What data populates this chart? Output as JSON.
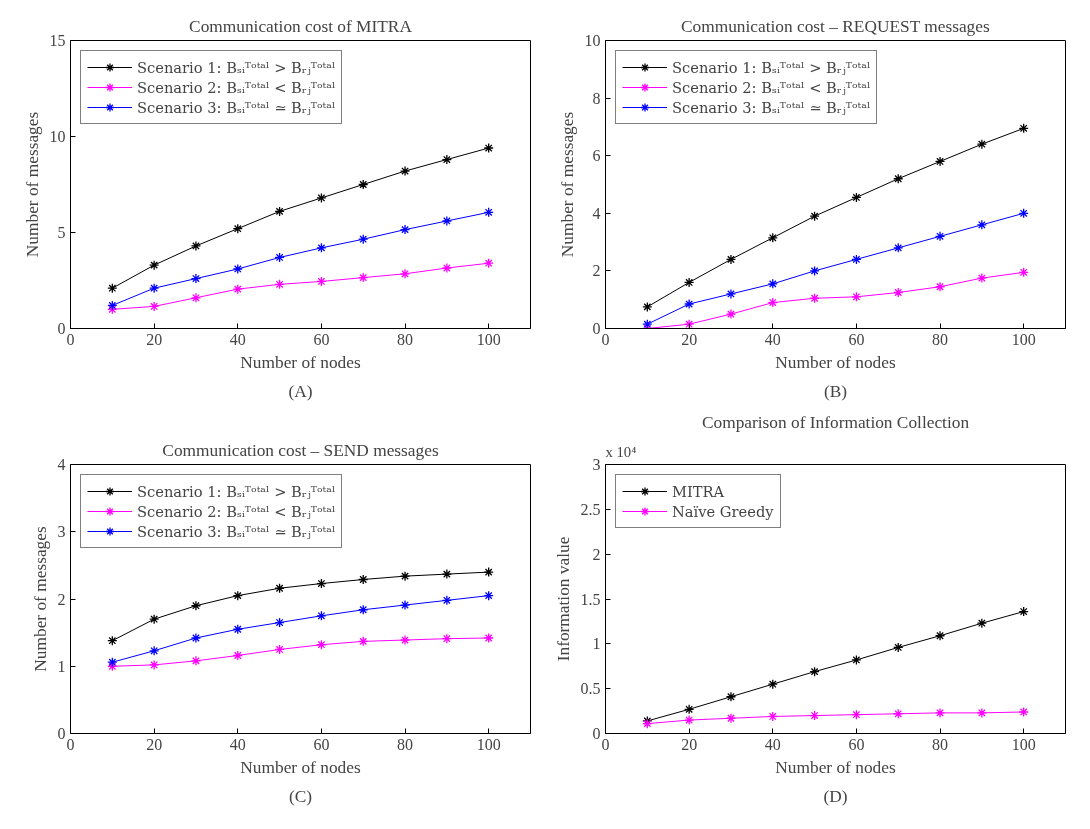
{
  "chart_data": [
    {
      "type": "line",
      "title": "Communication cost of MITRA",
      "xlabel": "Number of nodes",
      "ylabel": "Number of messages",
      "x": [
        10,
        20,
        30,
        40,
        50,
        60,
        70,
        80,
        90,
        100
      ],
      "xlim": [
        0,
        110
      ],
      "xticks": [
        0,
        20,
        40,
        60,
        80,
        100
      ],
      "ylim": [
        0,
        15
      ],
      "yticks": [
        0,
        5,
        10,
        15
      ],
      "marker": "cross",
      "legend": "top left",
      "grid": false,
      "annotations": [
        "(A)"
      ],
      "series": [
        {
          "name": "Scenario 1: Bₛᵢᵀᵒᵗᵃˡ > Bᵣⱼᵀᵒᵗᵃˡ",
          "color": "#000000",
          "values": [
            2.1,
            3.3,
            4.3,
            5.2,
            6.1,
            6.8,
            7.5,
            8.2,
            8.8,
            9.4
          ]
        },
        {
          "name": "Scenario 2: Bₛᵢᵀᵒᵗᵃˡ < Bᵣⱼᵀᵒᵗᵃˡ",
          "color": "#ff00ff",
          "values": [
            1.0,
            1.15,
            1.6,
            2.05,
            2.3,
            2.45,
            2.65,
            2.85,
            3.15,
            3.4
          ]
        },
        {
          "name": "Scenario 3: Bₛᵢᵀᵒᵗᵃˡ ≃ Bᵣⱼᵀᵒᵗᵃˡ",
          "color": "#0000ff",
          "values": [
            1.2,
            2.1,
            2.6,
            3.1,
            3.7,
            4.2,
            4.65,
            5.15,
            5.6,
            6.05
          ]
        }
      ]
    },
    {
      "type": "line",
      "title": "Communication cost – REQUEST messages",
      "xlabel": "Number of nodes",
      "ylabel": "Number of messages",
      "x": [
        10,
        20,
        30,
        40,
        50,
        60,
        70,
        80,
        90,
        100
      ],
      "xlim": [
        0,
        110
      ],
      "xticks": [
        0,
        20,
        40,
        60,
        80,
        100
      ],
      "ylim": [
        0,
        10
      ],
      "yticks": [
        0,
        2,
        4,
        6,
        8,
        10
      ],
      "marker": "cross",
      "legend": "top left",
      "grid": false,
      "annotations": [
        "(B)"
      ],
      "series": [
        {
          "name": "Scenario 1: Bₛᵢᵀᵒᵗᵃˡ > Bᵣⱼᵀᵒᵗᵃˡ",
          "color": "#000000",
          "values": [
            0.75,
            1.6,
            2.4,
            3.15,
            3.9,
            4.55,
            5.2,
            5.8,
            6.4,
            6.95
          ]
        },
        {
          "name": "Scenario 2: Bₛᵢᵀᵒᵗᵃˡ < Bᵣⱼᵀᵒᵗᵃˡ",
          "color": "#ff00ff",
          "values": [
            0.0,
            0.15,
            0.5,
            0.9,
            1.05,
            1.1,
            1.25,
            1.45,
            1.75,
            1.95
          ]
        },
        {
          "name": "Scenario 3: Bₛᵢᵀᵒᵗᵃˡ ≃ Bᵣⱼᵀᵒᵗᵃˡ",
          "color": "#0000ff",
          "values": [
            0.15,
            0.85,
            1.2,
            1.55,
            2.0,
            2.4,
            2.8,
            3.2,
            3.6,
            4.0
          ]
        }
      ]
    },
    {
      "type": "line",
      "title": "Communication cost – SEND messages",
      "xlabel": "Number of nodes",
      "ylabel": "Number of messages",
      "x": [
        10,
        20,
        30,
        40,
        50,
        60,
        70,
        80,
        90,
        100
      ],
      "xlim": [
        0,
        110
      ],
      "xticks": [
        0,
        20,
        40,
        60,
        80,
        100
      ],
      "ylim": [
        0,
        4
      ],
      "yticks": [
        0,
        1,
        2,
        3,
        4
      ],
      "marker": "cross",
      "legend": "top left",
      "grid": false,
      "annotations": [
        "(C)"
      ],
      "series": [
        {
          "name": "Scenario 1: Bₛᵢᵀᵒᵗᵃˡ > Bᵣⱼᵀᵒᵗᵃˡ",
          "color": "#000000",
          "values": [
            1.38,
            1.7,
            1.9,
            2.05,
            2.16,
            2.23,
            2.29,
            2.34,
            2.37,
            2.4
          ]
        },
        {
          "name": "Scenario 2: Bₛᵢᵀᵒᵗᵃˡ < Bᵣⱼᵀᵒᵗᵃˡ",
          "color": "#ff00ff",
          "values": [
            1.0,
            1.02,
            1.08,
            1.16,
            1.25,
            1.32,
            1.37,
            1.39,
            1.41,
            1.42
          ]
        },
        {
          "name": "Scenario 3: Bₛᵢᵀᵒᵗᵃˡ ≃ Bᵣⱼᵀᵒᵗᵃˡ",
          "color": "#0000ff",
          "values": [
            1.06,
            1.23,
            1.42,
            1.55,
            1.65,
            1.75,
            1.84,
            1.91,
            1.98,
            2.05
          ]
        }
      ]
    },
    {
      "type": "line",
      "title": "Comparison of Information Collection",
      "xlabel": "Number of nodes",
      "ylabel": "Information value",
      "x": [
        10,
        20,
        30,
        40,
        50,
        60,
        70,
        80,
        90,
        100
      ],
      "xlim": [
        0,
        110
      ],
      "xticks": [
        0,
        20,
        40,
        60,
        80,
        100
      ],
      "ylim": [
        0,
        3
      ],
      "yticks": [
        0,
        0.5,
        1,
        1.5,
        2,
        2.5,
        3
      ],
      "marker": "cross",
      "legend": "top left",
      "grid": false,
      "annotations": [
        "x 10⁴",
        "(D)"
      ],
      "series": [
        {
          "name": "MITRA",
          "color": "#000000",
          "values": [
            0.14,
            0.27,
            0.41,
            0.55,
            0.69,
            0.82,
            0.96,
            1.09,
            1.23,
            1.36
          ]
        },
        {
          "name": "Naïve Greedy",
          "color": "#ff00ff",
          "values": [
            0.11,
            0.15,
            0.17,
            0.19,
            0.2,
            0.21,
            0.22,
            0.23,
            0.23,
            0.24
          ]
        }
      ]
    }
  ]
}
